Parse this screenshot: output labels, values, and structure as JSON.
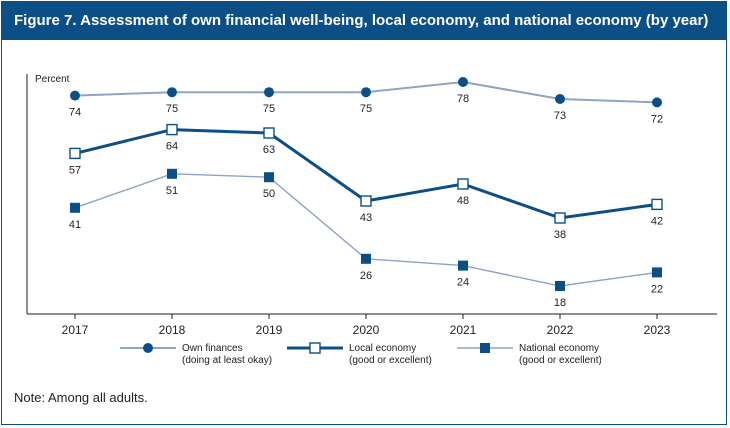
{
  "title": "Figure 7. Assessment of own financial well-being, local economy, and national economy (by year)",
  "note": "Note: Among all adults.",
  "chart_data": {
    "type": "line",
    "ylabel": "Percent",
    "x": [
      "2017",
      "2018",
      "2019",
      "2020",
      "2021",
      "2022",
      "2023"
    ],
    "ylim": [
      0,
      100
    ],
    "grid": false,
    "legend_position": "bottom",
    "series": [
      {
        "name": "Own finances (doing at least okay)",
        "legend_lines": [
          "Own finances",
          "(doing at least okay)"
        ],
        "values": [
          74,
          75,
          75,
          75,
          78,
          73,
          72
        ],
        "marker": "circle",
        "line_color": "#8da4c4",
        "marker_color": "#0b4f86"
      },
      {
        "name": "Local economy (good or excellent)",
        "legend_lines": [
          "Local economy",
          "(good or excellent)"
        ],
        "values": [
          57,
          64,
          63,
          43,
          48,
          38,
          42
        ],
        "marker": "open-square",
        "line_color": "#0b4f86",
        "marker_color": "#0b4f86"
      },
      {
        "name": "National economy (good or excellent)",
        "legend_lines": [
          "National economy",
          "(good or excellent)"
        ],
        "values": [
          41,
          51,
          50,
          26,
          24,
          18,
          22
        ],
        "marker": "filled-square",
        "line_color": "#8da4c4",
        "marker_color": "#0b4f86"
      }
    ]
  }
}
